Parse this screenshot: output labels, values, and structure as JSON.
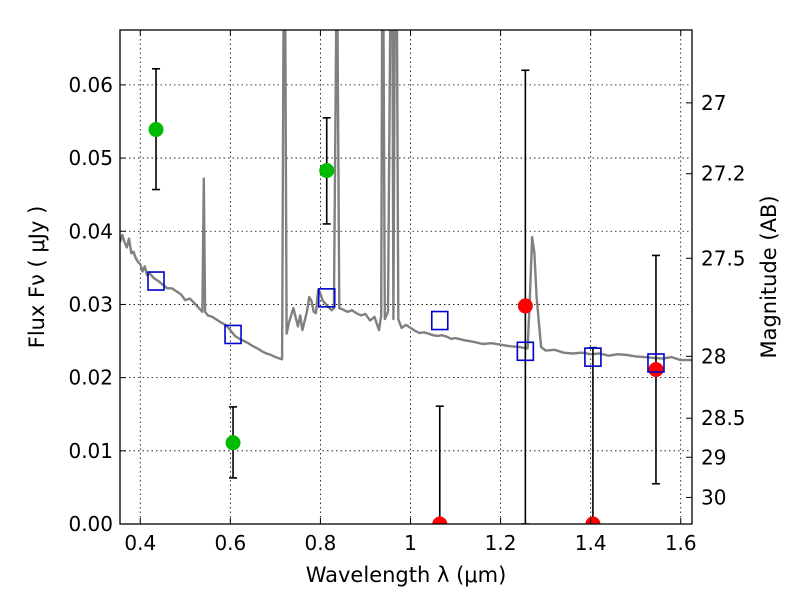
{
  "chart_data": {
    "type": "scatter",
    "title": "",
    "xlabel": "Wavelength  λ (μm)",
    "ylabel": "Flux  Fν  ( μJy )",
    "ylabel_right": "Magnitude (AB)",
    "xlim": [
      0.355,
      1.625
    ],
    "ylim": [
      0.0,
      0.0675
    ],
    "grid": true,
    "legend": "none",
    "x_ticks": [
      {
        "value": 0.4,
        "label": "0.4"
      },
      {
        "value": 0.6,
        "label": "0.6"
      },
      {
        "value": 0.8,
        "label": "0.8"
      },
      {
        "value": 1.0,
        "label": "1"
      },
      {
        "value": 1.2,
        "label": "1.2"
      },
      {
        "value": 1.4,
        "label": "1.4"
      },
      {
        "value": 1.6,
        "label": "1.6"
      }
    ],
    "y_ticks": [
      {
        "value": 0.0,
        "label": "0.00"
      },
      {
        "value": 0.01,
        "label": "0.01"
      },
      {
        "value": 0.02,
        "label": "0.02"
      },
      {
        "value": 0.03,
        "label": "0.03"
      },
      {
        "value": 0.04,
        "label": "0.04"
      },
      {
        "value": 0.05,
        "label": "0.05"
      },
      {
        "value": 0.06,
        "label": "0.06"
      }
    ],
    "right_ticks": [
      {
        "mag": 27.0,
        "label": "27"
      },
      {
        "mag": 27.2,
        "label": "27.2"
      },
      {
        "mag": 27.5,
        "label": "27.5"
      },
      {
        "mag": 28.0,
        "label": "28"
      },
      {
        "mag": 28.5,
        "label": "28.5"
      },
      {
        "mag": 29.0,
        "label": "29"
      },
      {
        "mag": 30.0,
        "label": "30"
      }
    ],
    "colors": {
      "model": "#808080",
      "detection": "#00bb00",
      "upper_limit": "#ff0000",
      "model_photometry": "#0000cc",
      "errorbar": "#000000",
      "grid": "#000000"
    },
    "series": [
      {
        "kind": "line",
        "style": "model",
        "points": [
          [
            0.355,
            0.0385
          ],
          [
            0.36,
            0.0395
          ],
          [
            0.365,
            0.0385
          ],
          [
            0.37,
            0.0378
          ],
          [
            0.375,
            0.039
          ],
          [
            0.38,
            0.037
          ],
          [
            0.385,
            0.0372
          ],
          [
            0.39,
            0.0363
          ],
          [
            0.395,
            0.0358
          ],
          [
            0.4,
            0.0355
          ],
          [
            0.405,
            0.0345
          ],
          [
            0.41,
            0.0352
          ],
          [
            0.415,
            0.034
          ],
          [
            0.42,
            0.0343
          ],
          [
            0.43,
            0.0336
          ],
          [
            0.44,
            0.0332
          ],
          [
            0.45,
            0.0327
          ],
          [
            0.46,
            0.0322
          ],
          [
            0.47,
            0.0322
          ],
          [
            0.48,
            0.0318
          ],
          [
            0.49,
            0.0314
          ],
          [
            0.5,
            0.0306
          ],
          [
            0.51,
            0.0308
          ],
          [
            0.52,
            0.0302
          ],
          [
            0.53,
            0.0295
          ],
          [
            0.538,
            0.029
          ],
          [
            0.541,
            0.0472
          ],
          [
            0.544,
            0.029
          ],
          [
            0.55,
            0.0285
          ],
          [
            0.56,
            0.0283
          ],
          [
            0.57,
            0.0279
          ],
          [
            0.58,
            0.0275
          ],
          [
            0.59,
            0.0272
          ],
          [
            0.6,
            0.0265
          ],
          [
            0.61,
            0.0257
          ],
          [
            0.62,
            0.0253
          ],
          [
            0.63,
            0.025
          ],
          [
            0.64,
            0.0247
          ],
          [
            0.65,
            0.0243
          ],
          [
            0.66,
            0.024
          ],
          [
            0.67,
            0.0236
          ],
          [
            0.68,
            0.0233
          ],
          [
            0.69,
            0.0231
          ],
          [
            0.7,
            0.0228
          ],
          [
            0.71,
            0.0226
          ],
          [
            0.715,
            0.0225
          ],
          [
            0.718,
            0.068
          ],
          [
            0.722,
            0.068
          ],
          [
            0.725,
            0.026
          ],
          [
            0.73,
            0.0275
          ],
          [
            0.74,
            0.0295
          ],
          [
            0.75,
            0.027
          ],
          [
            0.755,
            0.0285
          ],
          [
            0.76,
            0.0265
          ],
          [
            0.77,
            0.029
          ],
          [
            0.775,
            0.031
          ],
          [
            0.78,
            0.0305
          ],
          [
            0.785,
            0.029
          ],
          [
            0.79,
            0.0288
          ],
          [
            0.795,
            0.032
          ],
          [
            0.8,
            0.0315
          ],
          [
            0.805,
            0.0305
          ],
          [
            0.81,
            0.0302
          ],
          [
            0.815,
            0.0298
          ],
          [
            0.82,
            0.0295
          ],
          [
            0.825,
            0.0292
          ],
          [
            0.83,
            0.0295
          ],
          [
            0.835,
            0.068
          ],
          [
            0.838,
            0.068
          ],
          [
            0.842,
            0.0295
          ],
          [
            0.85,
            0.0293
          ],
          [
            0.86,
            0.029
          ],
          [
            0.87,
            0.0292
          ],
          [
            0.88,
            0.0288
          ],
          [
            0.89,
            0.0285
          ],
          [
            0.9,
            0.0287
          ],
          [
            0.91,
            0.0278
          ],
          [
            0.92,
            0.0283
          ],
          [
            0.93,
            0.0265
          ],
          [
            0.935,
            0.0285
          ],
          [
            0.937,
            0.068
          ],
          [
            0.94,
            0.068
          ],
          [
            0.943,
            0.028
          ],
          [
            0.95,
            0.029
          ],
          [
            0.955,
            0.068
          ],
          [
            0.96,
            0.068
          ],
          [
            0.962,
            0.028
          ],
          [
            0.965,
            0.068
          ],
          [
            0.97,
            0.068
          ],
          [
            0.973,
            0.028
          ],
          [
            0.98,
            0.0268
          ],
          [
            0.99,
            0.0272
          ],
          [
            1.0,
            0.0268
          ],
          [
            1.01,
            0.0264
          ],
          [
            1.02,
            0.0261
          ],
          [
            1.03,
            0.0262
          ],
          [
            1.04,
            0.026
          ],
          [
            1.05,
            0.0258
          ],
          [
            1.06,
            0.0257
          ],
          [
            1.07,
            0.0258
          ],
          [
            1.08,
            0.0256
          ],
          [
            1.09,
            0.0253
          ],
          [
            1.1,
            0.0254
          ],
          [
            1.12,
            0.0251
          ],
          [
            1.14,
            0.0249
          ],
          [
            1.16,
            0.0246
          ],
          [
            1.18,
            0.0247
          ],
          [
            1.2,
            0.0245
          ],
          [
            1.22,
            0.0243
          ],
          [
            1.24,
            0.0242
          ],
          [
            1.26,
            0.024
          ],
          [
            1.265,
            0.031
          ],
          [
            1.27,
            0.0392
          ],
          [
            1.275,
            0.037
          ],
          [
            1.28,
            0.031
          ],
          [
            1.29,
            0.0242
          ],
          [
            1.3,
            0.0237
          ],
          [
            1.32,
            0.0238
          ],
          [
            1.34,
            0.0234
          ],
          [
            1.36,
            0.0233
          ],
          [
            1.38,
            0.0234
          ],
          [
            1.4,
            0.0232
          ],
          [
            1.42,
            0.0233
          ],
          [
            1.44,
            0.023
          ],
          [
            1.46,
            0.0232
          ],
          [
            1.48,
            0.0231
          ],
          [
            1.5,
            0.0229
          ],
          [
            1.52,
            0.0228
          ],
          [
            1.54,
            0.0227
          ],
          [
            1.56,
            0.0226
          ],
          [
            1.58,
            0.0228
          ],
          [
            1.6,
            0.0224
          ],
          [
            1.625,
            0.0224
          ]
        ]
      },
      {
        "kind": "errorbar",
        "style": "detection",
        "points": [
          {
            "x": 0.435,
            "y": 0.0539,
            "ylo": 0.0457,
            "yhi": 0.0622
          },
          {
            "x": 0.606,
            "y": 0.0111,
            "ylo": 0.0063,
            "yhi": 0.016
          },
          {
            "x": 0.814,
            "y": 0.0483,
            "ylo": 0.041,
            "yhi": 0.0555
          }
        ]
      },
      {
        "kind": "errorbar",
        "style": "upper_limit",
        "points": [
          {
            "x": 1.065,
            "y": 0.0,
            "ylo": 0.0,
            "yhi": 0.0161
          },
          {
            "x": 1.255,
            "y": 0.0298,
            "ylo": 0.0,
            "yhi": 0.062
          },
          {
            "x": 1.405,
            "y": 0.0,
            "ylo": 0.0,
            "yhi": 0.0241
          },
          {
            "x": 1.545,
            "y": 0.0211,
            "ylo": 0.0055,
            "yhi": 0.0367
          }
        ]
      },
      {
        "kind": "square",
        "style": "model_photometry",
        "points": [
          [
            0.435,
            0.0332
          ],
          [
            0.606,
            0.0259
          ],
          [
            0.814,
            0.0309
          ],
          [
            1.065,
            0.0278
          ],
          [
            1.255,
            0.0236
          ],
          [
            1.405,
            0.0228
          ],
          [
            1.545,
            0.022
          ]
        ]
      }
    ]
  }
}
